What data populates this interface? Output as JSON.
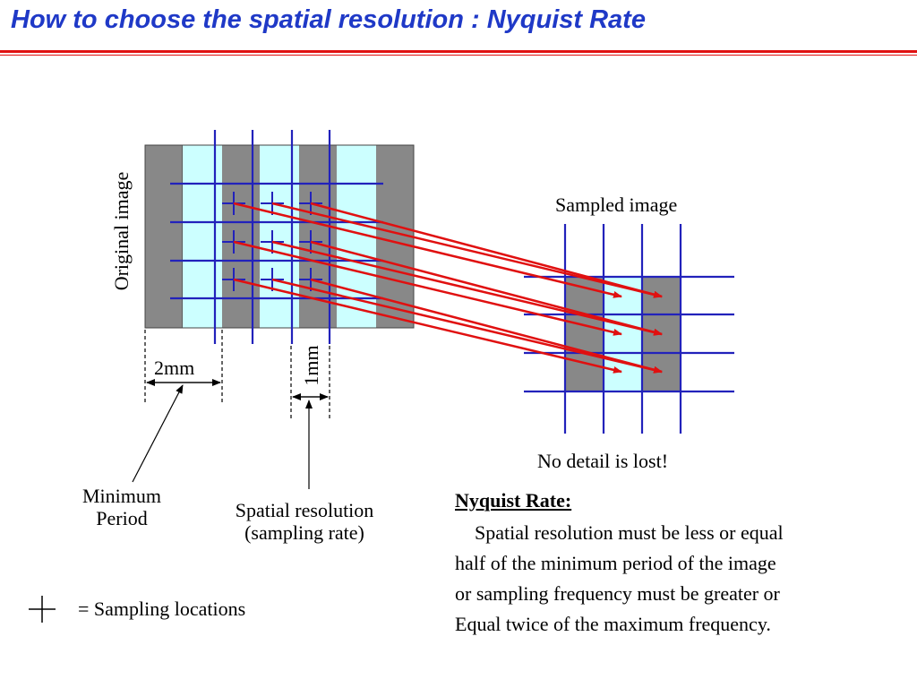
{
  "title": "How to choose the spatial resolution : Nyquist Rate",
  "labels": {
    "original_image": "Original image",
    "sampled_image": "Sampled image",
    "two_mm": "2mm",
    "one_mm": "1mm",
    "minimum_period": [
      "Minimum",
      "Period"
    ],
    "spatial_resolution": [
      "Spatial resolution",
      "(sampling rate)"
    ],
    "no_detail": "No detail is lost!",
    "legend": "= Sampling locations"
  },
  "nyquist": {
    "heading": "Nyquist Rate:",
    "lines": [
      "Spatial resolution must be less or equal",
      "half of the minimum period of the image",
      "or sampling frequency must be greater or",
      "Equal twice of the maximum frequency."
    ]
  },
  "colors": {
    "title": "#1f39c7",
    "rule": "#e01010",
    "dark_stripe": "#888888",
    "light_stripe": "#ccffff",
    "grid": "#2222bb",
    "arrow": "#e01010"
  }
}
